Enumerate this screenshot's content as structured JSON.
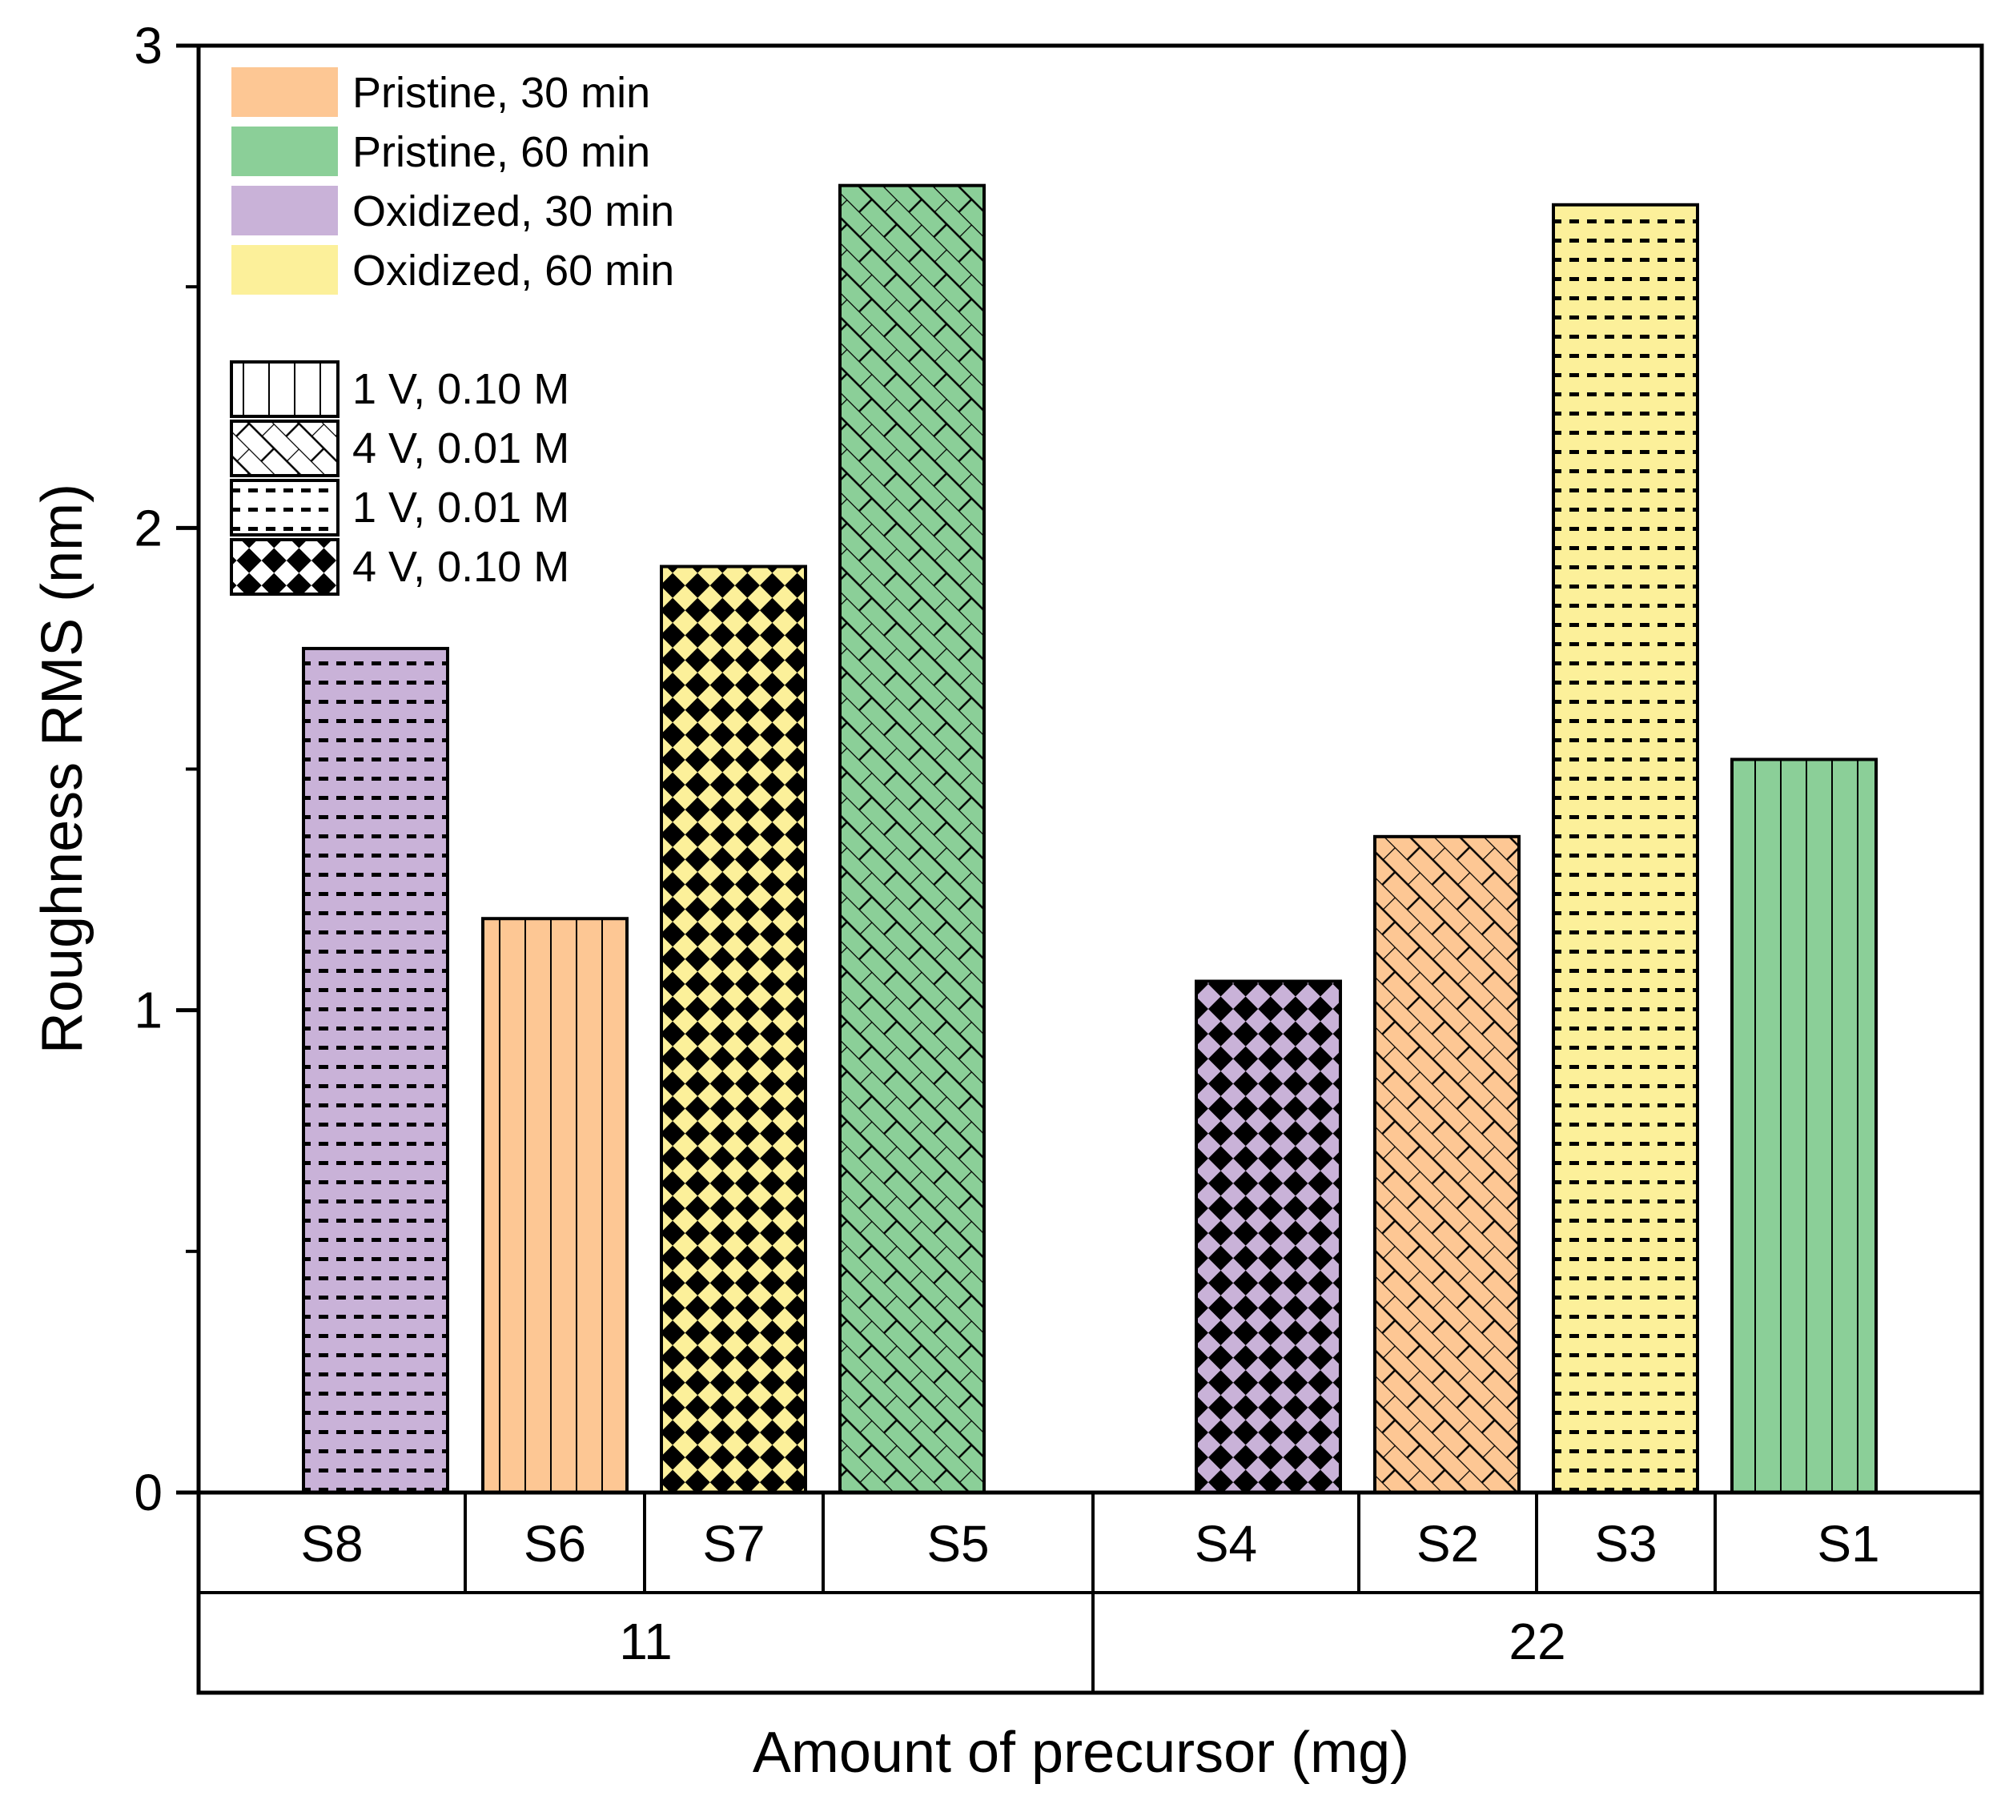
{
  "chart_data": {
    "type": "bar",
    "title": "",
    "xlabel": "Amount of precursor (mg)",
    "ylabel": "Roughness RMS (nm)",
    "ylim": [
      0,
      3
    ],
    "y_ticks": [
      "0",
      "1",
      "2",
      "3"
    ],
    "groups": [
      {
        "label": "11",
        "bars": [
          {
            "sample": "S8",
            "value": 1.75,
            "condition": "Oxidized, 30 min",
            "pattern": "1 V, 0.01 M"
          },
          {
            "sample": "S6",
            "value": 1.19,
            "condition": "Pristine, 30 min",
            "pattern": "1 V, 0.10 M"
          },
          {
            "sample": "S7",
            "value": 1.92,
            "condition": "Oxidized, 60 min",
            "pattern": "4 V, 0.10 M"
          },
          {
            "sample": "S5",
            "value": 2.71,
            "condition": "Pristine, 60 min",
            "pattern": "4 V, 0.01 M"
          }
        ]
      },
      {
        "label": "22",
        "bars": [
          {
            "sample": "S4",
            "value": 1.06,
            "condition": "Oxidized, 30 min",
            "pattern": "4 V, 0.10 M"
          },
          {
            "sample": "S2",
            "value": 1.36,
            "condition": "Pristine, 30 min",
            "pattern": "4 V, 0.01 M"
          },
          {
            "sample": "S3",
            "value": 2.67,
            "condition": "Oxidized, 60 min",
            "pattern": "1 V, 0.01 M"
          },
          {
            "sample": "S1",
            "value": 1.52,
            "condition": "Pristine, 60 min",
            "pattern": "1 V, 0.10 M"
          }
        ]
      }
    ],
    "legend_colors": [
      {
        "label": "Pristine, 30 min",
        "color": "#fdc794"
      },
      {
        "label": "Pristine, 60 min",
        "color": "#8bcf98"
      },
      {
        "label": "Oxidized, 30 min",
        "color": "#c9b2d8"
      },
      {
        "label": "Oxidized, 60 min",
        "color": "#fcf09a"
      }
    ],
    "legend_patterns": [
      {
        "label": "1 V, 0.10 M",
        "pattern": "vertical"
      },
      {
        "label": "4 V, 0.01 M",
        "pattern": "brick"
      },
      {
        "label": "1 V, 0.01 M",
        "pattern": "dashes"
      },
      {
        "label": "4 V, 0.10 M",
        "pattern": "checker"
      }
    ],
    "legend_position": "top-left"
  }
}
